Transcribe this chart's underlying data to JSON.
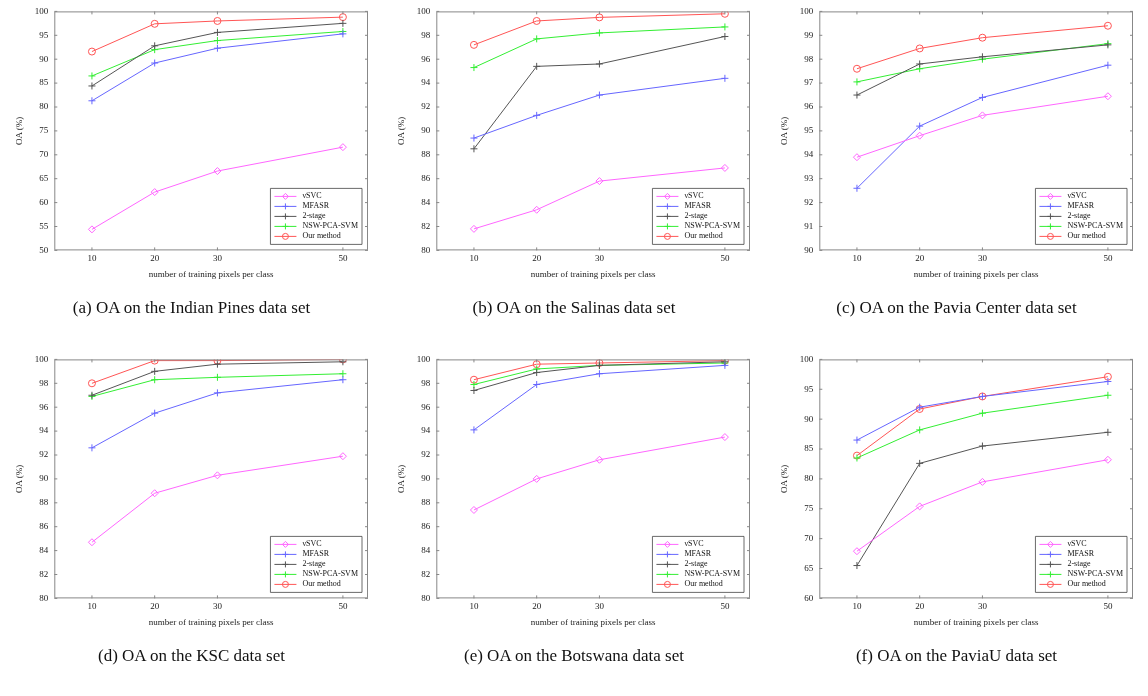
{
  "chart_data": [
    {
      "type": "line",
      "title": "(a) OA on the Indian Pines data set",
      "xlabel": "number of training pixels per class",
      "ylabel": "OA (%)",
      "x": [
        10,
        20,
        30,
        50
      ],
      "xlim": [
        4,
        54
      ],
      "xticks": [
        10,
        20,
        30,
        50
      ],
      "ylim": [
        50,
        100
      ],
      "yticks": [
        50,
        55,
        60,
        65,
        70,
        75,
        80,
        85,
        90,
        95,
        100
      ],
      "legend": "bottom right",
      "series": [
        {
          "name": "νSVC",
          "color": "#ff66ff",
          "marker": "diamond",
          "values": [
            54.4,
            62.2,
            66.6,
            71.6
          ]
        },
        {
          "name": "MFASR",
          "color": "#6666ff",
          "marker": "cross",
          "values": [
            81.3,
            89.2,
            92.3,
            95.3
          ]
        },
        {
          "name": "2-stage",
          "color": "#555555",
          "marker": "cross",
          "values": [
            84.4,
            92.8,
            95.6,
            97.5
          ]
        },
        {
          "name": "NSW-PCA-SVM",
          "color": "#33ee33",
          "marker": "cross",
          "values": [
            86.5,
            92.0,
            93.9,
            95.8
          ]
        },
        {
          "name": "Our method",
          "color": "#ff5555",
          "marker": "circle",
          "values": [
            91.6,
            97.4,
            98.0,
            98.8
          ]
        }
      ]
    },
    {
      "type": "line",
      "title": "(b) OA on the Salinas data set",
      "xlabel": "number of training pixels per class",
      "ylabel": "OA (%)",
      "x": [
        10,
        20,
        30,
        50
      ],
      "xlim": [
        4,
        54
      ],
      "xticks": [
        10,
        20,
        30,
        50
      ],
      "ylim": [
        80,
        100
      ],
      "yticks": [
        80,
        82,
        84,
        86,
        88,
        90,
        92,
        94,
        96,
        98,
        100
      ],
      "legend": "bottom right",
      "series": [
        {
          "name": "νSVC",
          "color": "#ff66ff",
          "marker": "diamond",
          "values": [
            81.8,
            83.4,
            85.8,
            86.9
          ]
        },
        {
          "name": "MFASR",
          "color": "#6666ff",
          "marker": "cross",
          "values": [
            89.4,
            91.3,
            93.0,
            94.4
          ]
        },
        {
          "name": "2-stage",
          "color": "#555555",
          "marker": "cross",
          "values": [
            88.5,
            95.4,
            95.6,
            97.9
          ]
        },
        {
          "name": "NSW-PCA-SVM",
          "color": "#33ee33",
          "marker": "cross",
          "values": [
            95.3,
            97.7,
            98.2,
            98.7
          ]
        },
        {
          "name": "Our method",
          "color": "#ff5555",
          "marker": "circle",
          "values": [
            97.2,
            99.2,
            99.5,
            99.8
          ]
        }
      ]
    },
    {
      "type": "line",
      "title": "(c) OA on the Pavia Center data set",
      "xlabel": "number of training pixels per class",
      "ylabel": "OA (%)",
      "x": [
        10,
        20,
        30,
        50
      ],
      "xlim": [
        4,
        54
      ],
      "xticks": [
        10,
        20,
        30,
        50
      ],
      "ylim": [
        90,
        100
      ],
      "yticks": [
        90,
        91,
        92,
        93,
        94,
        95,
        96,
        97,
        98,
        99,
        100
      ],
      "legend": "bottom right",
      "series": [
        {
          "name": "νSVC",
          "color": "#ff66ff",
          "marker": "diamond",
          "values": [
            93.9,
            94.8,
            95.65,
            96.45
          ]
        },
        {
          "name": "MFASR",
          "color": "#6666ff",
          "marker": "cross",
          "values": [
            92.6,
            95.2,
            96.4,
            97.75
          ]
        },
        {
          "name": "2-stage",
          "color": "#555555",
          "marker": "cross",
          "values": [
            96.5,
            97.8,
            98.1,
            98.6
          ]
        },
        {
          "name": "NSW-PCA-SVM",
          "color": "#33ee33",
          "marker": "cross",
          "values": [
            97.05,
            97.6,
            98.0,
            98.65
          ]
        },
        {
          "name": "Our method",
          "color": "#ff5555",
          "marker": "circle",
          "values": [
            97.6,
            98.45,
            98.9,
            99.4
          ]
        }
      ]
    },
    {
      "type": "line",
      "title": "(d) OA on the KSC data set",
      "xlabel": "number of training pixels per class",
      "ylabel": "OA (%)",
      "x": [
        10,
        20,
        30,
        50
      ],
      "xlim": [
        4,
        54
      ],
      "xticks": [
        10,
        20,
        30,
        50
      ],
      "ylim": [
        80,
        100
      ],
      "yticks": [
        80,
        82,
        84,
        86,
        88,
        90,
        92,
        94,
        96,
        98,
        100
      ],
      "legend": "bottom right",
      "series": [
        {
          "name": "νSVC",
          "color": "#ff66ff",
          "marker": "diamond",
          "values": [
            84.7,
            88.8,
            90.3,
            91.9
          ]
        },
        {
          "name": "MFASR",
          "color": "#6666ff",
          "marker": "cross",
          "values": [
            92.6,
            95.5,
            97.2,
            98.3
          ]
        },
        {
          "name": "2-stage",
          "color": "#555555",
          "marker": "cross",
          "values": [
            97.0,
            99.0,
            99.6,
            99.8
          ]
        },
        {
          "name": "NSW-PCA-SVM",
          "color": "#33ee33",
          "marker": "cross",
          "values": [
            96.9,
            98.3,
            98.5,
            98.8
          ]
        },
        {
          "name": "Our method",
          "color": "#ff5555",
          "marker": "circle",
          "values": [
            98.0,
            99.9,
            99.9,
            100.0
          ]
        }
      ]
    },
    {
      "type": "line",
      "title": "(e) OA on the Botswana data set",
      "xlabel": "number of training pixels per class",
      "ylabel": "OA (%)",
      "x": [
        10,
        20,
        30,
        50
      ],
      "xlim": [
        4,
        54
      ],
      "xticks": [
        10,
        20,
        30,
        50
      ],
      "ylim": [
        80,
        100
      ],
      "yticks": [
        80,
        82,
        84,
        86,
        88,
        90,
        92,
        94,
        96,
        98,
        100
      ],
      "legend": "bottom right",
      "series": [
        {
          "name": "νSVC",
          "color": "#ff66ff",
          "marker": "diamond",
          "values": [
            87.4,
            90.0,
            91.6,
            93.5
          ]
        },
        {
          "name": "MFASR",
          "color": "#6666ff",
          "marker": "cross",
          "values": [
            94.1,
            97.9,
            98.8,
            99.5
          ]
        },
        {
          "name": "2-stage",
          "color": "#555555",
          "marker": "cross",
          "values": [
            97.4,
            98.9,
            99.5,
            99.8
          ]
        },
        {
          "name": "NSW-PCA-SVM",
          "color": "#33ee33",
          "marker": "cross",
          "values": [
            97.9,
            99.2,
            99.5,
            99.7
          ]
        },
        {
          "name": "Our method",
          "color": "#ff5555",
          "marker": "circle",
          "values": [
            98.3,
            99.6,
            99.7,
            99.9
          ]
        }
      ]
    },
    {
      "type": "line",
      "title": "(f) OA on the PaviaU data set",
      "xlabel": "number of training pixels per class",
      "ylabel": "OA (%)",
      "x": [
        10,
        20,
        30,
        50
      ],
      "xlim": [
        4,
        54
      ],
      "xticks": [
        10,
        20,
        30,
        50
      ],
      "ylim": [
        60,
        100
      ],
      "yticks": [
        60,
        65,
        70,
        75,
        80,
        85,
        90,
        95,
        100
      ],
      "legend": "bottom right",
      "series": [
        {
          "name": "νSVC",
          "color": "#ff66ff",
          "marker": "diamond",
          "values": [
            67.9,
            75.4,
            79.5,
            83.2
          ]
        },
        {
          "name": "MFASR",
          "color": "#6666ff",
          "marker": "cross",
          "values": [
            86.5,
            92.0,
            93.8,
            96.3
          ]
        },
        {
          "name": "2-stage",
          "color": "#555555",
          "marker": "cross",
          "values": [
            65.5,
            82.6,
            85.5,
            87.8
          ]
        },
        {
          "name": "NSW-PCA-SVM",
          "color": "#33ee33",
          "marker": "cross",
          "values": [
            83.5,
            88.2,
            91.0,
            94.0
          ]
        },
        {
          "name": "Our method",
          "color": "#ff5555",
          "marker": "circle",
          "values": [
            83.9,
            91.7,
            93.8,
            97.1
          ]
        }
      ]
    }
  ]
}
